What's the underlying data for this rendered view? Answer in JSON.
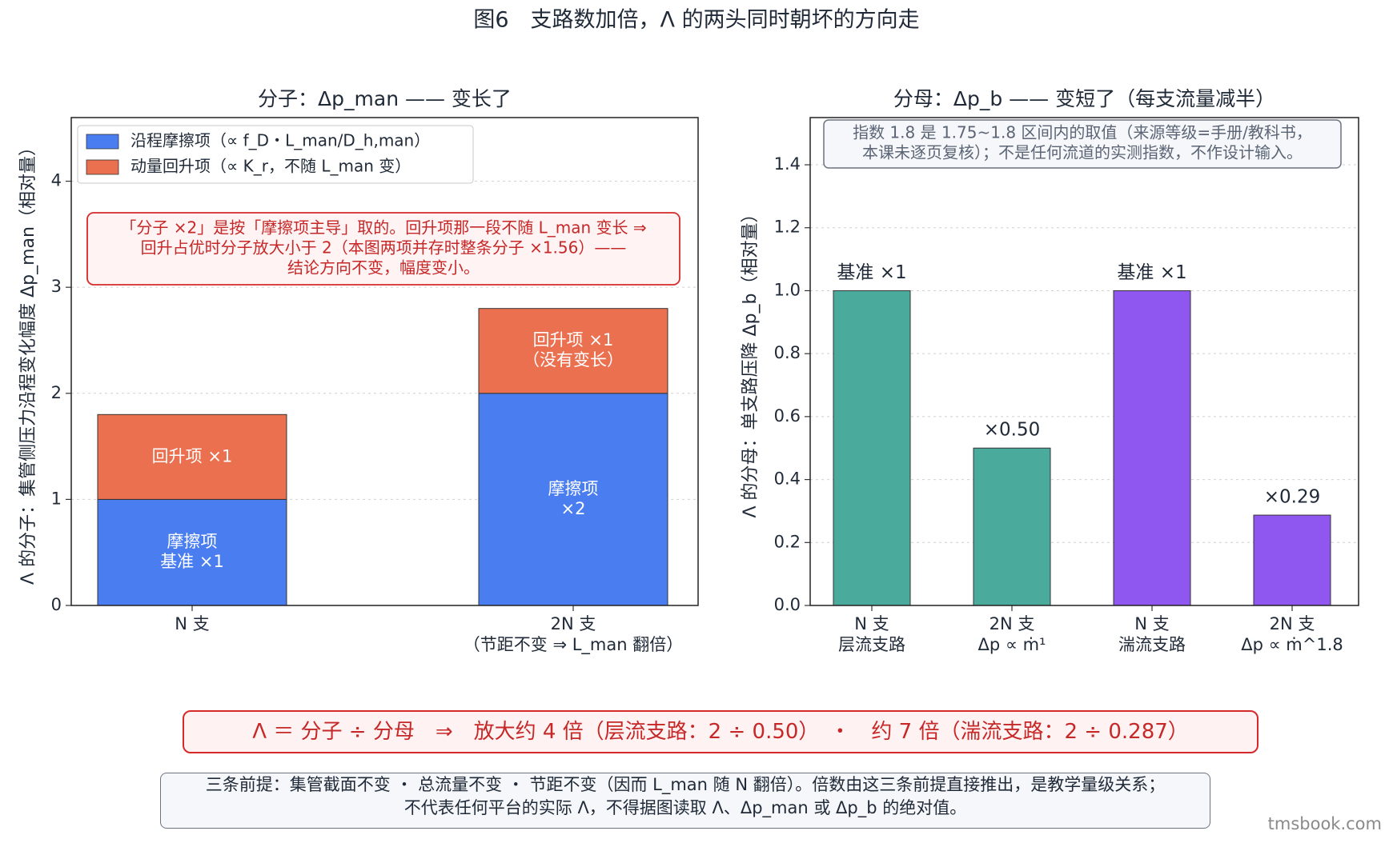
{
  "figure_title": "图6　支路数加倍，Λ 的两头同时朝坏的方向走",
  "chart_data": [
    {
      "type": "bar",
      "stacked": true,
      "title": "分子：Δp_man —— 变长了",
      "ylabel": "Λ 的分子：集管侧压力沿程变化幅度 Δp_man（相对量）",
      "ylim": [
        0,
        4.6
      ],
      "yticks": [
        "0",
        "1",
        "2",
        "3",
        "4"
      ],
      "grid": true,
      "legend_position": "top-left",
      "categories": [
        {
          "label": "N 支",
          "sublabel": ""
        },
        {
          "label": "2N 支",
          "sublabel": "（节距不变 ⇒ L_man 翻倍）"
        }
      ],
      "series": [
        {
          "name": "沿程摩擦项（∝ f_D・L_man/D_h,man）",
          "color": "#4a7ef0",
          "values": [
            1.0,
            2.0
          ],
          "labels": [
            [
              "摩擦项",
              "基准 ×1"
            ],
            [
              "摩擦项",
              "×2"
            ]
          ]
        },
        {
          "name": "动量回升项（∝ K_r，不随 L_man 变）",
          "color": "#ea7050",
          "values": [
            0.8,
            0.8
          ],
          "labels": [
            [
              "回升项 ×1"
            ],
            [
              "回升项 ×1",
              "（没有变长）"
            ]
          ]
        }
      ],
      "annotation": [
        "「分子 ×2」是按「摩擦项主导」取的。回升项那一段不随 L_man 变长 ⇒",
        "回升占优时分子放大小于 2（本图两项并存时整条分子 ×1.56）——",
        "结论方向不变，幅度变小。"
      ]
    },
    {
      "type": "bar",
      "title": "分母：Δp_b —— 变短了（每支流量减半）",
      "ylabel": "Λ 的分母：单支路压降 Δp_b（相对量）",
      "ylim": [
        0,
        1.55
      ],
      "yticks": [
        "0.0",
        "0.2",
        "0.4",
        "0.6",
        "0.8",
        "1.0",
        "1.2",
        "1.4"
      ],
      "grid": true,
      "categories": [
        {
          "label": "N 支",
          "sublabel": "层流支路"
        },
        {
          "label": "2N 支",
          "sublabel": "Δp ∝ ṁ¹"
        },
        {
          "label": "N 支",
          "sublabel": "湍流支路"
        },
        {
          "label": "2N 支",
          "sublabel": "Δp ∝ ṁ^1.8"
        }
      ],
      "values": [
        1.0,
        0.5,
        1.0,
        0.287
      ],
      "bar_labels": [
        "基准 ×1",
        "×0.50",
        "基准 ×1",
        "×0.29"
      ],
      "colors": [
        "#4aab9d",
        "#4aab9d",
        "#8f57f0",
        "#8f57f0"
      ],
      "annotation": [
        "指数 1.8 是 1.75~1.8 区间内的取值（来源等级=手册/教科书，",
        "本课未逐页复核）；不是任何流道的实测指数，不作设计输入。"
      ]
    }
  ],
  "banner": "Λ ＝ 分子 ÷ 分母　⇒　放大约 4 倍（层流支路：2 ÷ 0.50）　・　约 7 倍（湍流支路：2 ÷ 0.287）",
  "footnote": [
    "三条前提：集管截面不变 ・ 总流量不变 ・ 节距不变（因而 L_man 随 N 翻倍）。倍数由这三条前提直接推出，是教学量级关系；",
    "不代表任何平台的实际 Λ，不得据图读取 Λ、Δp_man 或 Δp_b 的绝对值。"
  ],
  "watermark": "tmsbook.com"
}
